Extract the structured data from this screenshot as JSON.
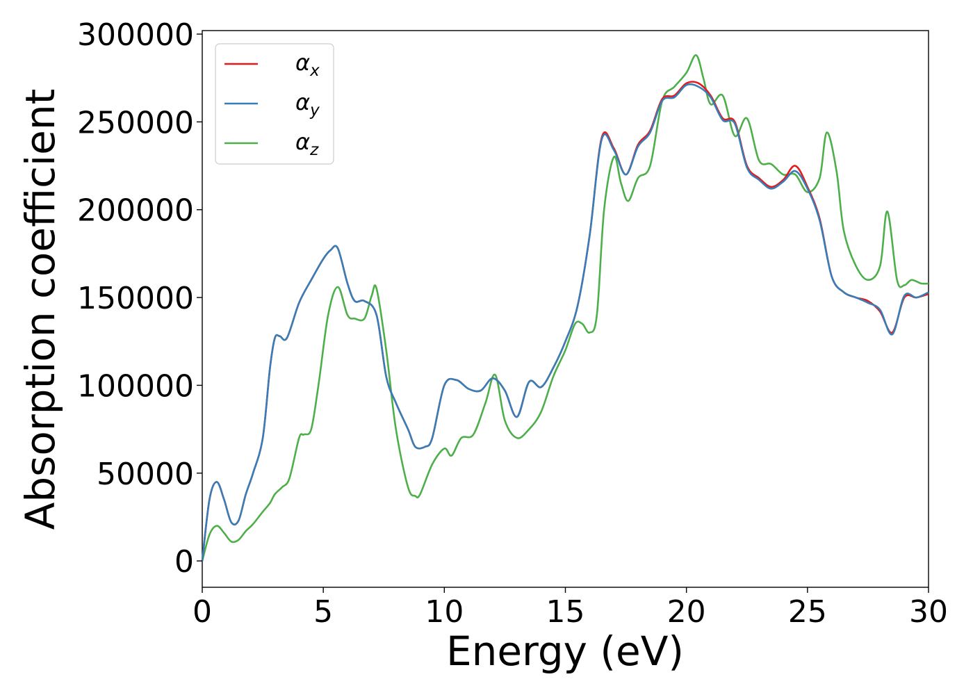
{
  "chart_data": {
    "type": "line",
    "title": "",
    "xlabel": "Energy (eV)",
    "ylabel": "Absorption coefficient",
    "xlim": [
      0,
      30
    ],
    "ylim": [
      -15000,
      302000
    ],
    "xticks": [
      0,
      5,
      10,
      15,
      20,
      25,
      30
    ],
    "xtick_labels": [
      "0",
      "5",
      "10",
      "15",
      "20",
      "25",
      "30"
    ],
    "yticks": [
      0,
      50000,
      100000,
      150000,
      200000,
      250000,
      300000
    ],
    "ytick_labels": [
      "0",
      "50000",
      "100000",
      "150000",
      "200000",
      "250000",
      "300000"
    ],
    "grid": false,
    "legend_position": "top-left",
    "series": [
      {
        "name": "α",
        "subscript": "x",
        "color": "#e41a1c",
        "x": [
          0,
          0.3,
          0.6,
          0.9,
          1.2,
          1.5,
          1.8,
          2.1,
          2.5,
          2.8,
          3.0,
          3.2,
          3.5,
          4.0,
          4.5,
          5.0,
          5.3,
          5.6,
          6.0,
          6.3,
          6.7,
          7.2,
          7.6,
          8.0,
          8.5,
          8.8,
          9.2,
          9.5,
          10.0,
          10.5,
          11.0,
          11.5,
          12.0,
          12.5,
          13.0,
          13.5,
          14.0,
          14.5,
          15.0,
          15.5,
          16.0,
          16.5,
          17.0,
          17.5,
          18.0,
          18.5,
          19.0,
          19.5,
          20.0,
          20.5,
          21.0,
          21.5,
          22.0,
          22.5,
          23.0,
          23.5,
          24.0,
          24.5,
          25.0,
          25.5,
          26.0,
          26.5,
          27.0,
          27.5,
          28.0,
          28.5,
          29.0,
          29.5,
          30.0
        ],
        "y": [
          0,
          35000,
          45000,
          35000,
          22000,
          23000,
          38000,
          50000,
          70000,
          110000,
          127000,
          128000,
          127000,
          147000,
          160000,
          172000,
          177000,
          178000,
          158000,
          148000,
          148000,
          140000,
          105000,
          90000,
          75000,
          65000,
          65000,
          70000,
          100000,
          103000,
          98000,
          97000,
          104000,
          97000,
          82000,
          102000,
          99000,
          110000,
          125000,
          145000,
          185000,
          241000,
          235000,
          220000,
          237000,
          245000,
          263000,
          265000,
          272000,
          272000,
          265000,
          252000,
          250000,
          225000,
          218000,
          213000,
          217000,
          225000,
          213000,
          195000,
          162000,
          153000,
          150000,
          148000,
          142000,
          130000,
          150000,
          150000,
          152000
        ]
      },
      {
        "name": "α",
        "subscript": "y",
        "color": "#377eb8",
        "x": [
          0,
          0.3,
          0.6,
          0.9,
          1.2,
          1.5,
          1.8,
          2.1,
          2.5,
          2.8,
          3.0,
          3.2,
          3.5,
          4.0,
          4.5,
          5.0,
          5.3,
          5.6,
          6.0,
          6.3,
          6.7,
          7.2,
          7.6,
          8.0,
          8.5,
          8.8,
          9.2,
          9.5,
          10.0,
          10.5,
          11.0,
          11.5,
          12.0,
          12.5,
          13.0,
          13.5,
          14.0,
          14.5,
          15.0,
          15.5,
          16.0,
          16.5,
          17.0,
          17.5,
          18.0,
          18.5,
          19.0,
          19.5,
          20.0,
          20.5,
          21.0,
          21.5,
          22.0,
          22.5,
          23.0,
          23.5,
          24.0,
          24.5,
          25.0,
          25.5,
          26.0,
          26.5,
          27.0,
          27.5,
          28.0,
          28.5,
          29.0,
          29.5,
          30.0
        ],
        "y": [
          0,
          35000,
          45000,
          35000,
          22000,
          23000,
          38000,
          50000,
          70000,
          110000,
          127000,
          128000,
          127000,
          147000,
          160000,
          172000,
          177000,
          178000,
          158000,
          148000,
          148000,
          140000,
          105000,
          90000,
          75000,
          65000,
          65000,
          70000,
          100000,
          103000,
          98000,
          97000,
          104000,
          97000,
          82000,
          102000,
          99000,
          110000,
          125000,
          145000,
          185000,
          240000,
          234000,
          220000,
          236000,
          244000,
          262000,
          264000,
          271000,
          270000,
          264000,
          251000,
          249000,
          224000,
          217000,
          212000,
          216000,
          222000,
          212000,
          194000,
          162000,
          153000,
          150000,
          147000,
          143000,
          129000,
          151000,
          150000,
          153000
        ]
      },
      {
        "name": "α",
        "subscript": "z",
        "color": "#4daf4a",
        "x": [
          0,
          0.3,
          0.6,
          0.9,
          1.2,
          1.5,
          1.8,
          2.1,
          2.5,
          2.8,
          3.0,
          3.3,
          3.6,
          4.0,
          4.2,
          4.5,
          4.8,
          5.2,
          5.6,
          6.0,
          6.3,
          6.7,
          7.0,
          7.2,
          7.6,
          8.0,
          8.5,
          8.8,
          9.0,
          9.5,
          10.0,
          10.3,
          10.7,
          11.2,
          11.7,
          12.1,
          12.5,
          13.0,
          13.5,
          14.0,
          14.5,
          15.0,
          15.4,
          15.7,
          16.0,
          16.3,
          16.6,
          17.0,
          17.3,
          17.6,
          18.0,
          18.5,
          19.0,
          19.5,
          20.0,
          20.4,
          20.7,
          21.0,
          21.5,
          22.0,
          22.5,
          23.0,
          23.5,
          24.0,
          24.5,
          25.0,
          25.5,
          25.8,
          26.2,
          26.5,
          27.0,
          27.5,
          28.0,
          28.3,
          28.7,
          29.0,
          29.3,
          29.7,
          30.0
        ],
        "y": [
          0,
          15000,
          20000,
          16000,
          11000,
          12000,
          17000,
          21000,
          28000,
          33000,
          38000,
          42000,
          47000,
          70000,
          72000,
          75000,
          100000,
          140000,
          156000,
          140000,
          138000,
          138000,
          151000,
          155000,
          120000,
          75000,
          42000,
          37000,
          38000,
          55000,
          64000,
          60000,
          70000,
          72000,
          90000,
          106000,
          80000,
          70000,
          75000,
          85000,
          105000,
          120000,
          135000,
          135000,
          130000,
          140000,
          200000,
          230000,
          215000,
          205000,
          218000,
          225000,
          262000,
          270000,
          278000,
          288000,
          275000,
          260000,
          265000,
          242000,
          252000,
          228000,
          226000,
          220000,
          220000,
          210000,
          218000,
          244000,
          222000,
          188000,
          168000,
          160000,
          168000,
          199000,
          160000,
          157000,
          160000,
          158000,
          158000
        ]
      }
    ]
  }
}
